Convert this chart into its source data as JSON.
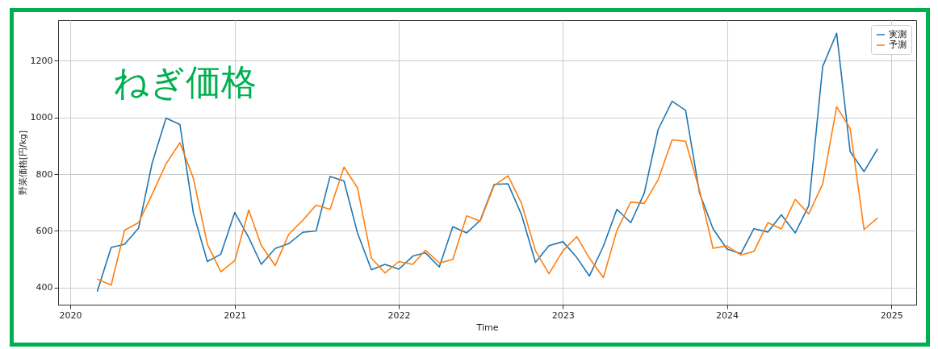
{
  "chart_data": {
    "type": "line",
    "title": "ねぎ価格",
    "xlabel": "Time",
    "ylabel": "野菜価格[円/kg]",
    "x": [
      "2020-03",
      "2020-04",
      "2020-05",
      "2020-06",
      "2020-07",
      "2020-08",
      "2020-09",
      "2020-10",
      "2020-11",
      "2020-12",
      "2021-01",
      "2021-02",
      "2021-03",
      "2021-04",
      "2021-05",
      "2021-06",
      "2021-07",
      "2021-08",
      "2021-09",
      "2021-10",
      "2021-11",
      "2021-12",
      "2022-01",
      "2022-02",
      "2022-03",
      "2022-04",
      "2022-05",
      "2022-06",
      "2022-07",
      "2022-08",
      "2022-09",
      "2022-10",
      "2022-11",
      "2022-12",
      "2023-01",
      "2023-02",
      "2023-03",
      "2023-04",
      "2023-05",
      "2023-06",
      "2023-07",
      "2023-08",
      "2023-09",
      "2023-10",
      "2023-11",
      "2023-12",
      "2024-01",
      "2024-02",
      "2024-03",
      "2024-04",
      "2024-05",
      "2024-06",
      "2024-07",
      "2024-08",
      "2024-09",
      "2024-10",
      "2024-11",
      "2024-12"
    ],
    "series": [
      {
        "name": "実測",
        "color": "#1f77b4",
        "values": [
          386,
          542,
          553,
          610,
          838,
          998,
          975,
          662,
          492,
          518,
          665,
          577,
          482,
          538,
          555,
          595,
          600,
          792,
          776,
          593,
          463,
          482,
          465,
          511,
          523,
          473,
          615,
          593,
          637,
          764,
          766,
          657,
          489,
          548,
          562,
          506,
          441,
          546,
          676,
          629,
          733,
          958,
          1057,
          1025,
          733,
          608,
          536,
          520,
          608,
          596,
          657,
          593,
          689,
          1180,
          1297,
          880,
          809,
          889
        ]
      },
      {
        "name": "予測",
        "color": "#ff7f0e",
        "values": [
          430,
          409,
          603,
          629,
          728,
          836,
          911,
          785,
          553,
          456,
          495,
          674,
          549,
          478,
          588,
          637,
          691,
          676,
          825,
          752,
          504,
          452,
          492,
          482,
          532,
          487,
          499,
          653,
          634,
          760,
          794,
          697,
          530,
          449,
          530,
          580,
          504,
          435,
          601,
          702,
          697,
          781,
          921,
          916,
          743,
          539,
          547,
          515,
          528,
          629,
          607,
          711,
          660,
          766,
          1038,
          961,
          605,
          646
        ]
      }
    ],
    "xlim": [
      "2019-12-05",
      "2025-02-25"
    ],
    "xticks": [
      "2020",
      "2021",
      "2022",
      "2023",
      "2024",
      "2025"
    ],
    "ylim": [
      340,
      1343
    ],
    "yticks": [
      400,
      600,
      800,
      1000,
      1200
    ],
    "grid": true,
    "legend": "top right",
    "line_style": "solid",
    "marker": "none"
  }
}
